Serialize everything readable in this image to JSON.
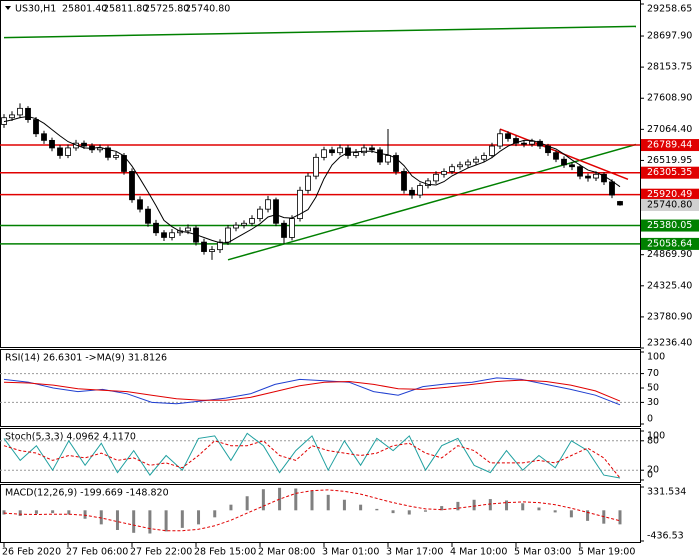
{
  "chart_data": {
    "type": "candlestick",
    "header": {
      "symbol": "US30,H1",
      "values": [
        "25801.40",
        "25811.80",
        "25725.80",
        "25740.80"
      ]
    },
    "candle_color": "#000000",
    "candles": {
      "open": [
        27150,
        27268,
        27317,
        27432,
        27235,
        26987,
        26871,
        26739,
        26607,
        26739,
        26822,
        26772,
        26706,
        26739,
        26574,
        26607,
        26327,
        25832,
        25667,
        25420,
        25254,
        25172,
        25254,
        25287,
        25337,
        25090,
        24925,
        24958,
        25090,
        25337,
        25386,
        25420,
        25502,
        25667,
        25832,
        25420,
        25172,
        25502,
        25997,
        26245,
        26574,
        26706,
        26656,
        26739,
        26607,
        26656,
        26739,
        26706,
        26492,
        26607,
        26327,
        25997,
        25914,
        26080,
        26162,
        26277,
        26327,
        26410,
        26443,
        26492,
        26541,
        26607,
        26772,
        26987,
        26904,
        26822,
        26805,
        26855,
        26772,
        26656,
        26541,
        26443,
        26410,
        26245,
        26212,
        26277,
        26145,
        25801.4
      ],
      "high": [
        27330,
        27380,
        27520,
        27470,
        27280,
        27040,
        26920,
        26790,
        26800,
        26880,
        26870,
        26820,
        26800,
        26780,
        26670,
        26650,
        26380,
        25890,
        25720,
        25480,
        25300,
        25320,
        25350,
        25400,
        25380,
        25150,
        25020,
        25140,
        25390,
        25440,
        25470,
        25560,
        25720,
        25900,
        25870,
        25470,
        25560,
        26060,
        26300,
        26640,
        26760,
        26760,
        26800,
        26790,
        26720,
        26800,
        26790,
        26750,
        27070,
        26660,
        26380,
        26050,
        26130,
        26210,
        26330,
        26380,
        26460,
        26500,
        26540,
        26590,
        26660,
        26830,
        27064,
        27030,
        26950,
        26870,
        26900,
        26890,
        26810,
        26700,
        26590,
        26490,
        26450,
        26290,
        26330,
        26310,
        26190,
        25811.8
      ],
      "low": [
        27090,
        27210,
        27260,
        27180,
        26930,
        26810,
        26680,
        26550,
        26560,
        26690,
        26720,
        26650,
        26660,
        26520,
        26530,
        26270,
        25780,
        25610,
        25360,
        25200,
        25110,
        25120,
        25200,
        25230,
        25030,
        24870,
        24780,
        24900,
        25040,
        25280,
        25330,
        25370,
        25450,
        25610,
        25370,
        25060,
        25120,
        25450,
        25940,
        26190,
        26520,
        26600,
        26610,
        26550,
        26560,
        26600,
        26650,
        26440,
        26440,
        26270,
        25940,
        25850,
        25860,
        26030,
        26110,
        26220,
        26280,
        26360,
        26390,
        26440,
        26490,
        26560,
        26720,
        26850,
        26770,
        26750,
        26760,
        26720,
        26600,
        26490,
        26390,
        26350,
        26190,
        26150,
        26160,
        26090,
        25860,
        25725.8
      ],
      "close": [
        27268,
        27317,
        27432,
        27235,
        26987,
        26871,
        26739,
        26607,
        26739,
        26822,
        26772,
        26706,
        26739,
        26574,
        26607,
        26327,
        25832,
        25667,
        25420,
        25254,
        25172,
        25254,
        25287,
        25337,
        25090,
        24925,
        24958,
        25090,
        25337,
        25386,
        25420,
        25502,
        25667,
        25832,
        25420,
        25172,
        25502,
        25997,
        26245,
        26574,
        26706,
        26656,
        26739,
        26607,
        26656,
        26739,
        26706,
        26492,
        26607,
        26327,
        25997,
        25914,
        26080,
        26162,
        26277,
        26327,
        26410,
        26443,
        26492,
        26541,
        26607,
        26772,
        26987,
        26904,
        26822,
        26805,
        26855,
        26772,
        26656,
        26541,
        26443,
        26410,
        26245,
        26212,
        26277,
        26145,
        25914,
        25740.8
      ]
    },
    "ma": {
      "color": "#000000",
      "values": [
        27200,
        27230,
        27270,
        27290,
        27250,
        27170,
        27060,
        26950,
        26850,
        26790,
        26740,
        26730,
        26750,
        26710,
        26680,
        26600,
        26420,
        26200,
        25970,
        25730,
        25470,
        25360,
        25280,
        25260,
        25220,
        25170,
        25120,
        25080,
        25080,
        25160,
        25240,
        25320,
        25410,
        25530,
        25570,
        25520,
        25510,
        25580,
        25660,
        25880,
        26200,
        26440,
        26580,
        26660,
        26670,
        26680,
        26680,
        26640,
        26620,
        26560,
        26430,
        26250,
        26150,
        26100,
        26090,
        26150,
        26250,
        26320,
        26390,
        26440,
        26490,
        26570,
        26680,
        26770,
        26830,
        26870,
        26870,
        26830,
        26770,
        26720,
        26630,
        26530,
        26440,
        26350,
        26310,
        26250,
        26160,
        26060
      ]
    },
    "ylim": [
      23236.4,
      29258.65
    ],
    "yticks": [
      29258.65,
      {
        "value": 28697.9,
        "label": "28697.90"
      },
      28153.75,
      {
        "value": 27608.9,
        "label": "27608.90"
      },
      {
        "value": 27064.4,
        "label": "27064.40"
      },
      26519.95,
      {
        "value": 24869.9,
        "label": "24869.90"
      },
      {
        "value": 24325.4,
        "label": "24325.40"
      },
      {
        "value": 23780.9,
        "label": "23780.90"
      },
      {
        "value": 23236.4,
        "label": "23236.40"
      }
    ],
    "levels": [
      {
        "value": 26789.44,
        "color": "#e00000"
      },
      {
        "value": 26305.35,
        "color": "#e00000"
      },
      {
        "value": 25920.49,
        "color": "#e00000"
      },
      {
        "value": 25380.05,
        "color": "#008000"
      },
      {
        "value": 25058.64,
        "color": "#008000"
      }
    ],
    "trendlines": [
      {
        "color": "#008000",
        "start": [
          0,
          28670
        ],
        "end": [
          79,
          28868
        ]
      },
      {
        "color": "#008000",
        "start": [
          28,
          24780
        ],
        "end": [
          79,
          26800
        ]
      },
      {
        "color": "#e00000",
        "start": [
          62,
          27070
        ],
        "end": [
          78,
          26190
        ]
      }
    ],
    "time_labels": [
      "26 Feb 2020",
      "27 Feb 06:00",
      "27 Feb 22:00",
      "28 Feb 15:00",
      "2 Mar 08:00",
      "3 Mar 01:00",
      "3 Mar 17:00",
      "4 Mar 10:00",
      "5 Mar 03:00",
      "5 Mar 19:00"
    ],
    "rsi": {
      "title": "RSI(14) 26.6301 ->MA(9) 31.8126",
      "ylim": [
        0,
        100
      ],
      "yticks": [
        100,
        70,
        50,
        30,
        0
      ],
      "levels": [
        70,
        30
      ],
      "series": [
        {
          "color": "#1f3fd0",
          "values": [
            62,
            58,
            50,
            45,
            48,
            42,
            30,
            28,
            32,
            36,
            42,
            55,
            62,
            60,
            58,
            45,
            40,
            52,
            56,
            58,
            64,
            62,
            55,
            48,
            40,
            26.6301
          ]
        },
        {
          "color": "#e00000",
          "values": [
            58,
            57,
            54,
            49,
            47,
            45,
            40,
            35,
            33,
            33,
            37,
            45,
            53,
            58,
            59,
            55,
            49,
            48,
            51,
            55,
            59,
            61,
            59,
            54,
            46,
            31.8126
          ]
        }
      ]
    },
    "stoch": {
      "title": "Stoch(5,3,3) 4.0962 4.1170",
      "ylim": [
        0,
        100
      ],
      "yticks": [
        100,
        80,
        20,
        0
      ],
      "levels": [
        80,
        20
      ],
      "series": [
        {
          "color": "#20a0a0",
          "values": [
            85,
            40,
            70,
            20,
            80,
            30,
            75,
            15,
            60,
            10,
            50,
            20,
            85,
            90,
            40,
            95,
            70,
            15,
            60,
            90,
            20,
            80,
            30,
            85,
            60,
            90,
            20,
            70,
            85,
            30,
            15,
            60,
            20,
            50,
            25,
            80,
            60,
            10,
            4.0962
          ]
        },
        {
          "color": "#e00000",
          "dashed": true,
          "values": [
            70,
            60,
            55,
            40,
            50,
            45,
            55,
            40,
            45,
            30,
            35,
            25,
            50,
            80,
            70,
            70,
            80,
            50,
            40,
            70,
            60,
            55,
            50,
            55,
            70,
            75,
            55,
            45,
            70,
            60,
            35,
            35,
            35,
            40,
            35,
            50,
            65,
            45,
            4.117
          ]
        }
      ]
    },
    "macd": {
      "title": "MACD(12,26,9) -199.669 -148.820",
      "ylim": [
        -436.53,
        331.534
      ],
      "yticks": [
        331.534,
        -436.53
      ],
      "histogram": {
        "color": "#808080",
        "values": [
          -60,
          -80,
          -50,
          -40,
          -60,
          -120,
          -200,
          -280,
          -320,
          -330,
          -300,
          -250,
          -200,
          -100,
          80,
          200,
          300,
          320,
          310,
          280,
          220,
          150,
          80,
          20,
          -40,
          -60,
          -20,
          60,
          120,
          150,
          160,
          140,
          100,
          40,
          -30,
          -100,
          -150,
          -190,
          -199.669
        ]
      },
      "signal": {
        "color": "#e00000",
        "values": [
          -40,
          -55,
          -60,
          -55,
          -55,
          -70,
          -110,
          -160,
          -210,
          -260,
          -290,
          -290,
          -270,
          -220,
          -140,
          -40,
          60,
          160,
          240,
          280,
          290,
          270,
          230,
          170,
          110,
          60,
          20,
          10,
          30,
          60,
          90,
          110,
          120,
          110,
          80,
          30,
          -30,
          -90,
          -148.82
        ]
      }
    }
  }
}
